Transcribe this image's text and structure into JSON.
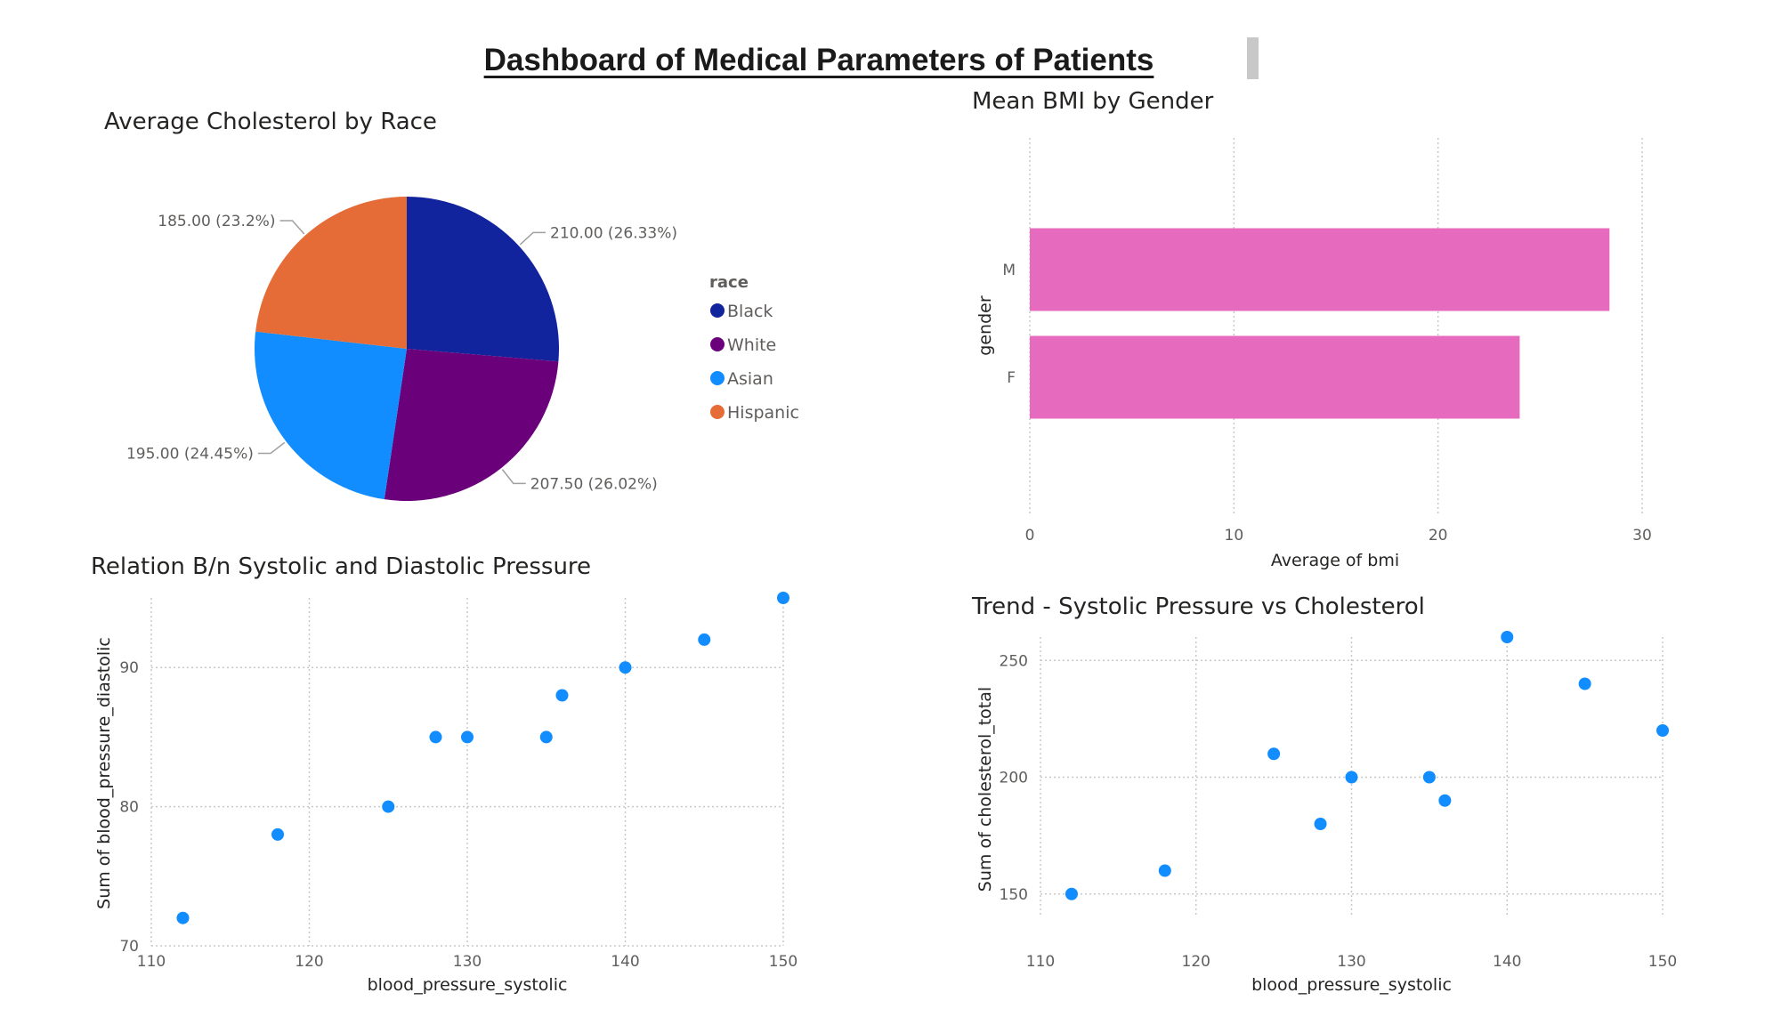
{
  "dashboard": {
    "title": "Dashboard of Medical Parameters of Patients"
  },
  "chart_data": [
    {
      "type": "pie",
      "title": "Average Cholesterol by Race",
      "legend_title": "race",
      "legend_position": "right",
      "slices": [
        {
          "label": "Black",
          "value": 210.0,
          "display": "210.00 (26.33%)",
          "color": "#12239E"
        },
        {
          "label": "White",
          "value": 207.5,
          "display": "207.50 (26.02%)",
          "color": "#6B007B"
        },
        {
          "label": "Asian",
          "value": 195.0,
          "display": "195.00 (24.45%)",
          "color": "#118DFF"
        },
        {
          "label": "Hispanic",
          "value": 185.0,
          "display": "185.00 (23.2%)",
          "color": "#E66C37"
        }
      ]
    },
    {
      "type": "bar",
      "orientation": "horizontal",
      "title": "Mean BMI by Gender",
      "xlabel": "Average of bmi",
      "ylabel": "gender",
      "categories": [
        "M",
        "F"
      ],
      "values": [
        28.4,
        24.0
      ],
      "xlim": [
        0,
        30
      ],
      "xticks": [
        "0",
        "10",
        "20",
        "30"
      ],
      "color": "#E66BBE",
      "grid": true
    },
    {
      "type": "scatter",
      "title": "Relation B/n Systolic and Diastolic Pressure",
      "xlabel": "blood_pressure_systolic",
      "ylabel": "Sum of blood_pressure_diastolic",
      "xlim": [
        110,
        150
      ],
      "ylim": [
        70,
        95
      ],
      "xticks": [
        "110",
        "120",
        "130",
        "140",
        "150"
      ],
      "yticks": [
        "70",
        "80",
        "90"
      ],
      "color": "#118DFF",
      "grid": true,
      "points": [
        {
          "x": 112,
          "y": 72
        },
        {
          "x": 118,
          "y": 78
        },
        {
          "x": 125,
          "y": 80
        },
        {
          "x": 128,
          "y": 85
        },
        {
          "x": 130,
          "y": 85
        },
        {
          "x": 135,
          "y": 85
        },
        {
          "x": 136,
          "y": 88
        },
        {
          "x": 140,
          "y": 90
        },
        {
          "x": 145,
          "y": 92
        },
        {
          "x": 150,
          "y": 95
        }
      ]
    },
    {
      "type": "scatter",
      "title": "Trend - Systolic Pressure vs Cholesterol",
      "xlabel": "blood_pressure_systolic",
      "ylabel": "Sum of cholesterol_total",
      "xlim": [
        110,
        150
      ],
      "ylim": [
        140,
        260
      ],
      "xticks": [
        "110",
        "120",
        "130",
        "140",
        "150"
      ],
      "yticks": [
        "150",
        "200",
        "250"
      ],
      "color": "#118DFF",
      "grid": true,
      "points": [
        {
          "x": 112,
          "y": 150
        },
        {
          "x": 118,
          "y": 160
        },
        {
          "x": 125,
          "y": 210
        },
        {
          "x": 128,
          "y": 180
        },
        {
          "x": 130,
          "y": 200
        },
        {
          "x": 135,
          "y": 200
        },
        {
          "x": 136,
          "y": 190
        },
        {
          "x": 140,
          "y": 260
        },
        {
          "x": 145,
          "y": 240
        },
        {
          "x": 150,
          "y": 220
        }
      ]
    }
  ]
}
